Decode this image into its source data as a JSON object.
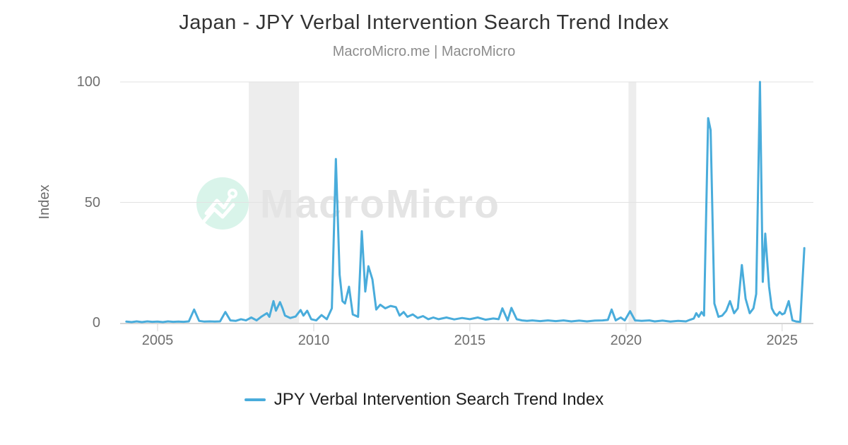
{
  "header": {
    "title": "Japan - JPY Verbal Intervention Search Trend Index",
    "subtitle": "MacroMicro.me | MacroMicro"
  },
  "watermark": {
    "text": "MacroMicro",
    "circle_color": "#d9f4ea",
    "text_color": "#e4e4e4"
  },
  "legend": {
    "label": "JPY Verbal Intervention Search Trend Index"
  },
  "colors": {
    "line": "#49ACDB",
    "gridline": "#e2e2e2",
    "axis": "#d4d4d4",
    "recession_band": "#ededed",
    "tick_text": "#6f6f6f"
  },
  "chart_data": {
    "type": "line",
    "title": "Japan - JPY Verbal Intervention Search Trend Index",
    "subtitle": "MacroMicro.me | MacroMicro",
    "xlabel": "",
    "ylabel": "Index",
    "xlim": [
      2003.8,
      2026.0
    ],
    "ylim": [
      0,
      100
    ],
    "x_ticks": [
      2005,
      2010,
      2015,
      2020,
      2025
    ],
    "y_ticks": [
      0,
      50,
      100
    ],
    "grid": "horizontal",
    "legend_position": "bottom",
    "line_color": "#49ACDB",
    "recession_bands": [
      [
        2007.92,
        2009.53
      ],
      [
        2020.08,
        2020.33
      ]
    ],
    "series": [
      {
        "name": "JPY Verbal Intervention Search Trend Index",
        "points": [
          [
            2004.0,
            0.5
          ],
          [
            2004.17,
            0.3
          ],
          [
            2004.33,
            0.6
          ],
          [
            2004.5,
            0.3
          ],
          [
            2004.67,
            0.6
          ],
          [
            2004.83,
            0.4
          ],
          [
            2005.0,
            0.5
          ],
          [
            2005.17,
            0.3
          ],
          [
            2005.33,
            0.6
          ],
          [
            2005.5,
            0.4
          ],
          [
            2005.67,
            0.5
          ],
          [
            2005.83,
            0.4
          ],
          [
            2006.0,
            0.6
          ],
          [
            2006.17,
            5.5
          ],
          [
            2006.33,
            0.8
          ],
          [
            2006.5,
            0.5
          ],
          [
            2006.67,
            0.6
          ],
          [
            2006.83,
            0.5
          ],
          [
            2007.0,
            0.6
          ],
          [
            2007.17,
            4.5
          ],
          [
            2007.33,
            1.0
          ],
          [
            2007.5,
            0.8
          ],
          [
            2007.67,
            1.5
          ],
          [
            2007.83,
            1.0
          ],
          [
            2008.0,
            2.2
          ],
          [
            2008.17,
            1.0
          ],
          [
            2008.33,
            2.6
          ],
          [
            2008.5,
            4.0
          ],
          [
            2008.58,
            2.5
          ],
          [
            2008.71,
            9.0
          ],
          [
            2008.79,
            5.0
          ],
          [
            2008.92,
            8.6
          ],
          [
            2009.0,
            6.0
          ],
          [
            2009.08,
            3.0
          ],
          [
            2009.25,
            2.0
          ],
          [
            2009.42,
            2.6
          ],
          [
            2009.58,
            5.3
          ],
          [
            2009.67,
            3.0
          ],
          [
            2009.79,
            5.0
          ],
          [
            2009.92,
            1.5
          ],
          [
            2010.08,
            1.0
          ],
          [
            2010.25,
            3.2
          ],
          [
            2010.42,
            1.5
          ],
          [
            2010.58,
            6.0
          ],
          [
            2010.71,
            68
          ],
          [
            2010.83,
            20
          ],
          [
            2010.92,
            9
          ],
          [
            2011.0,
            8
          ],
          [
            2011.13,
            15
          ],
          [
            2011.25,
            3.5
          ],
          [
            2011.42,
            2.5
          ],
          [
            2011.54,
            38
          ],
          [
            2011.65,
            13
          ],
          [
            2011.75,
            23.5
          ],
          [
            2011.88,
            18
          ],
          [
            2012.0,
            5.5
          ],
          [
            2012.13,
            7.5
          ],
          [
            2012.29,
            6
          ],
          [
            2012.46,
            7
          ],
          [
            2012.63,
            6.5
          ],
          [
            2012.75,
            3
          ],
          [
            2012.88,
            4.5
          ],
          [
            2013.0,
            2.5
          ],
          [
            2013.17,
            3.5
          ],
          [
            2013.33,
            2
          ],
          [
            2013.5,
            2.8
          ],
          [
            2013.67,
            1.5
          ],
          [
            2013.83,
            2.2
          ],
          [
            2014.0,
            1.5
          ],
          [
            2014.25,
            2.2
          ],
          [
            2014.5,
            1.4
          ],
          [
            2014.75,
            2
          ],
          [
            2015.0,
            1.5
          ],
          [
            2015.25,
            2.2
          ],
          [
            2015.5,
            1.3
          ],
          [
            2015.75,
            1.8
          ],
          [
            2015.92,
            1.5
          ],
          [
            2016.04,
            6
          ],
          [
            2016.21,
            1
          ],
          [
            2016.33,
            6.2
          ],
          [
            2016.5,
            1.5
          ],
          [
            2016.67,
            1
          ],
          [
            2016.83,
            0.8
          ],
          [
            2017.0,
            1
          ],
          [
            2017.25,
            0.7
          ],
          [
            2017.5,
            1
          ],
          [
            2017.75,
            0.7
          ],
          [
            2018.0,
            1
          ],
          [
            2018.25,
            0.6
          ],
          [
            2018.5,
            0.9
          ],
          [
            2018.75,
            0.6
          ],
          [
            2019.0,
            0.9
          ],
          [
            2019.25,
            1
          ],
          [
            2019.42,
            1.2
          ],
          [
            2019.54,
            5.5
          ],
          [
            2019.67,
            1
          ],
          [
            2019.83,
            2.2
          ],
          [
            2019.96,
            1
          ],
          [
            2020.13,
            4.8
          ],
          [
            2020.29,
            1
          ],
          [
            2020.5,
            0.8
          ],
          [
            2020.75,
            1
          ],
          [
            2020.92,
            0.6
          ],
          [
            2021.17,
            0.9
          ],
          [
            2021.42,
            0.5
          ],
          [
            2021.67,
            0.8
          ],
          [
            2021.92,
            0.6
          ],
          [
            2022.04,
            1.2
          ],
          [
            2022.17,
            1.8
          ],
          [
            2022.25,
            4
          ],
          [
            2022.33,
            2.5
          ],
          [
            2022.42,
            4.5
          ],
          [
            2022.5,
            3
          ],
          [
            2022.63,
            85
          ],
          [
            2022.71,
            80
          ],
          [
            2022.83,
            8
          ],
          [
            2022.96,
            2.5
          ],
          [
            2023.08,
            3
          ],
          [
            2023.21,
            5
          ],
          [
            2023.33,
            9
          ],
          [
            2023.46,
            4
          ],
          [
            2023.58,
            6
          ],
          [
            2023.71,
            24
          ],
          [
            2023.83,
            10
          ],
          [
            2023.96,
            4
          ],
          [
            2024.08,
            6
          ],
          [
            2024.17,
            12
          ],
          [
            2024.29,
            100
          ],
          [
            2024.38,
            17
          ],
          [
            2024.46,
            37
          ],
          [
            2024.58,
            15
          ],
          [
            2024.67,
            6
          ],
          [
            2024.75,
            4
          ],
          [
            2024.83,
            3
          ],
          [
            2024.92,
            4.5
          ],
          [
            2025.0,
            3.5
          ],
          [
            2025.08,
            4
          ],
          [
            2025.21,
            9
          ],
          [
            2025.33,
            1
          ],
          [
            2025.46,
            0.5
          ],
          [
            2025.58,
            0.4
          ],
          [
            2025.71,
            31
          ]
        ]
      }
    ]
  }
}
